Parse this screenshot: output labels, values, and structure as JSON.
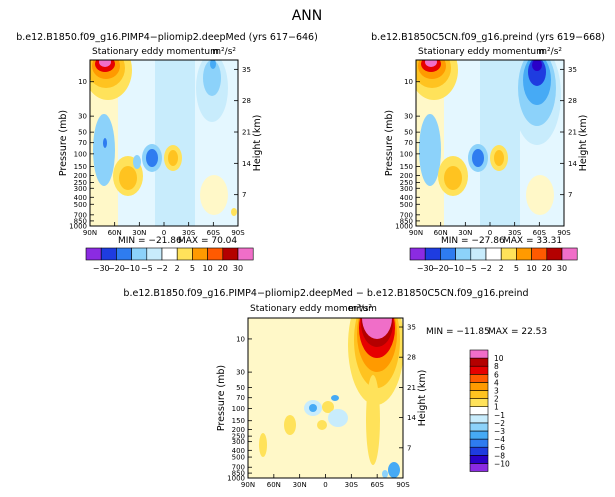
{
  "figure": {
    "title": "ANN",
    "palette_main": [
      "#8b2be2",
      "#2a00c8",
      "#1e3ce0",
      "#2e7cf0",
      "#46aaf5",
      "#8cd2fa",
      "#c8ecfc",
      "#e4f7ff",
      "#fff8c8",
      "#ffe25a",
      "#ffc320",
      "#ff9a00",
      "#ff5a00",
      "#e60000",
      "#b40000",
      "#f06ec8"
    ],
    "palette_diff": [
      "#8b2be2",
      "#2a00c8",
      "#1e3ce0",
      "#2e7cf0",
      "#46aaf5",
      "#8cd2fa",
      "#c8ecfc",
      "#e4f7ff",
      "#fff8c8",
      "#ffe25a",
      "#ffc320",
      "#ff9a00",
      "#ff5a00",
      "#e60000",
      "#b40000",
      "#f06ec8"
    ]
  },
  "chart_data": [
    {
      "type": "heatmap",
      "title": "b.e12.B1850.f09_g16.PIMP4−pliomip2.deepMed (yrs 617−646)",
      "subtitle": "Stationary eddy momentum",
      "units": "m²/s²",
      "ylabel": "Pressure (mb)",
      "y2label": "Height (km)",
      "x_ticks": [
        "90N",
        "60N",
        "30N",
        "0",
        "30S",
        "60S",
        "90S"
      ],
      "y_ticks": [
        "10",
        "30",
        "50",
        "70",
        "100",
        "150",
        "200",
        "250",
        "300",
        "400",
        "500",
        "700",
        "850",
        "1000"
      ],
      "y2_ticks": [
        "35",
        "28",
        "21",
        "14",
        "7"
      ],
      "min_label": "MIN = −21.86",
      "max_label": "MAX =  70.04",
      "levels": [
        -30,
        -20,
        -10,
        -5,
        -2,
        2,
        5,
        10,
        20,
        30
      ],
      "colorbar_labels": [
        "−30",
        "−20",
        "−10",
        "−5",
        "−2",
        "2",
        "5",
        "10",
        "20",
        "30"
      ],
      "min": -21.86,
      "max": 70.04,
      "features": [
        {
          "lat": 58,
          "level": "10",
          "value": 70,
          "sign": "positive"
        },
        {
          "lat": 40,
          "level": "250",
          "value": 10,
          "sign": "positive"
        },
        {
          "lat": 15,
          "level": "100",
          "value": -10,
          "sign": "negative"
        },
        {
          "lat": 5,
          "level": "100",
          "value": 5,
          "sign": "positive"
        },
        {
          "lat": -40,
          "level": "10",
          "value": -5,
          "sign": "negative"
        }
      ]
    },
    {
      "type": "heatmap",
      "title": "b.e12.B1850C5CN.f09_g16.preind (yrs 619−668)",
      "subtitle": "Stationary eddy momentum",
      "units": "m²/s²",
      "ylabel": "Pressure (mb)",
      "y2label": "Height (km)",
      "x_ticks": [
        "90N",
        "60N",
        "30N",
        "0",
        "30S",
        "60S",
        "90S"
      ],
      "y_ticks": [
        "10",
        "30",
        "50",
        "70",
        "100",
        "150",
        "200",
        "250",
        "300",
        "400",
        "500",
        "700",
        "850",
        "1000"
      ],
      "y2_ticks": [
        "35",
        "28",
        "21",
        "14",
        "7"
      ],
      "min_label": "MIN = −27.86",
      "max_label": "MAX =  33.31",
      "levels": [
        -30,
        -20,
        -10,
        -5,
        -2,
        2,
        5,
        10,
        20,
        30
      ],
      "colorbar_labels": [
        "−30",
        "−20",
        "−10",
        "−5",
        "−2",
        "2",
        "5",
        "10",
        "20",
        "30"
      ],
      "min": -27.86,
      "max": 33.31,
      "features": [
        {
          "lat": 58,
          "level": "10",
          "value": 33,
          "sign": "positive"
        },
        {
          "lat": 40,
          "level": "250",
          "value": 10,
          "sign": "positive"
        },
        {
          "lat": 15,
          "level": "100",
          "value": -10,
          "sign": "negative"
        },
        {
          "lat": -60,
          "level": "10",
          "value": -28,
          "sign": "negative"
        }
      ]
    },
    {
      "type": "heatmap",
      "title": "b.e12.B1850.f09_g16.PIMP4−pliomip2.deepMed − b.e12.B1850C5CN.f09_g16.preind",
      "subtitle": "Stationary eddy momentum",
      "units": "m²/s²",
      "ylabel": "Pressure (mb)",
      "y2label": "Height (km)",
      "x_ticks": [
        "90N",
        "60N",
        "30N",
        "0",
        "30S",
        "60S",
        "90S"
      ],
      "y_ticks": [
        "10",
        "30",
        "50",
        "70",
        "100",
        "150",
        "200",
        "250",
        "300",
        "400",
        "500",
        "700",
        "850",
        "1000"
      ],
      "y2_ticks": [
        "35",
        "28",
        "21",
        "14",
        "7"
      ],
      "min_label": "MIN = −11.85",
      "max_label": "MAX =  22.53",
      "levels": [
        -10,
        -8,
        -6,
        -4,
        -3,
        -2,
        -1,
        1,
        2,
        3,
        4,
        6,
        8,
        10
      ],
      "colorbar_labels": [
        "−10",
        "−8",
        "−6",
        "−4",
        "−3",
        "−2",
        "−1",
        "1",
        "2",
        "3",
        "4",
        "6",
        "8",
        "10"
      ],
      "min": -11.85,
      "max": 22.53,
      "features": [
        {
          "lat": -60,
          "level": "10",
          "value": 22.5,
          "sign": "positive"
        },
        {
          "lat": 15,
          "level": "100",
          "value": -2,
          "sign": "negative"
        },
        {
          "lat": -15,
          "level": "150",
          "value": 2,
          "sign": "positive"
        }
      ]
    }
  ]
}
